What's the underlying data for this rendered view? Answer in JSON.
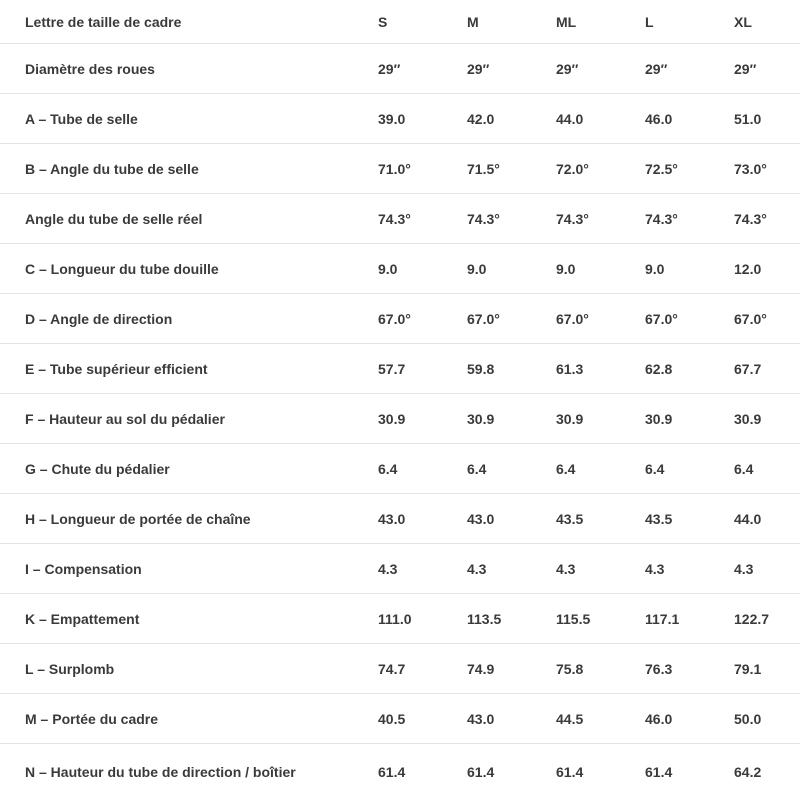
{
  "colors": {
    "text": "#3a3a3a",
    "divider": "#e4e4e4",
    "background": "#ffffff"
  },
  "chart_data": {
    "type": "table",
    "header": [
      "Lettre de taille de cadre",
      "S",
      "M",
      "ML",
      "L",
      "XL"
    ],
    "rows": [
      [
        "Diamètre des roues",
        "29″",
        "29″",
        "29″",
        "29″",
        "29″"
      ],
      [
        "A – Tube de selle",
        "39.0",
        "42.0",
        "44.0",
        "46.0",
        "51.0"
      ],
      [
        "B – Angle du tube de selle",
        "71.0°",
        "71.5°",
        "72.0°",
        "72.5°",
        "73.0°"
      ],
      [
        "Angle du tube de selle réel",
        "74.3°",
        "74.3°",
        "74.3°",
        "74.3°",
        "74.3°"
      ],
      [
        "C – Longueur du tube douille",
        "9.0",
        "9.0",
        "9.0",
        "9.0",
        "12.0"
      ],
      [
        "D – Angle de direction",
        "67.0°",
        "67.0°",
        "67.0°",
        "67.0°",
        "67.0°"
      ],
      [
        "E – Tube supérieur efficient",
        "57.7",
        "59.8",
        "61.3",
        "62.8",
        "67.7"
      ],
      [
        "F – Hauteur au sol du pédalier",
        "30.9",
        "30.9",
        "30.9",
        "30.9",
        "30.9"
      ],
      [
        "G – Chute du pédalier",
        "6.4",
        "6.4",
        "6.4",
        "6.4",
        "6.4"
      ],
      [
        "H – Longueur de portée de chaîne",
        "43.0",
        "43.0",
        "43.5",
        "43.5",
        "44.0"
      ],
      [
        "I – Compensation",
        "4.3",
        "4.3",
        "4.3",
        "4.3",
        "4.3"
      ],
      [
        "K – Empattement",
        "111.0",
        "113.5",
        "115.5",
        "117.1",
        "122.7"
      ],
      [
        "L – Surplomb",
        "74.7",
        "74.9",
        "75.8",
        "76.3",
        "79.1"
      ],
      [
        "M – Portée du cadre",
        "40.5",
        "43.0",
        "44.5",
        "46.0",
        "50.0"
      ],
      [
        "N – Hauteur du tube de direction / boîtier",
        "61.4",
        "61.4",
        "61.4",
        "61.4",
        "64.2"
      ]
    ]
  }
}
